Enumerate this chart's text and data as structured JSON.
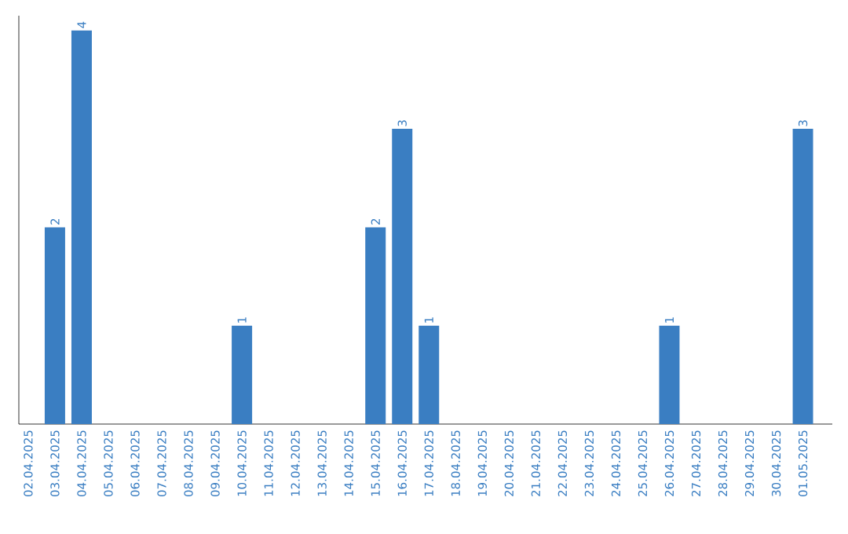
{
  "chart_data": {
    "type": "bar",
    "categories": [
      "02.04.2025",
      "03.04.2025",
      "04.04.2025",
      "05.04.2025",
      "06.04.2025",
      "07.04.2025",
      "08.04.2025",
      "09.04.2025",
      "10.04.2025",
      "11.04.2025",
      "12.04.2025",
      "13.04.2025",
      "14.04.2025",
      "15.04.2025",
      "16.04.2025",
      "17.04.2025",
      "18.04.2025",
      "19.04.2025",
      "20.04.2025",
      "21.04.2025",
      "22.04.2025",
      "23.04.2025",
      "24.04.2025",
      "25.04.2025",
      "26.04.2025",
      "27.04.2025",
      "28.04.2025",
      "29.04.2025",
      "30.04.2025",
      "01.05.2025"
    ],
    "values": [
      0,
      2,
      4,
      0,
      0,
      0,
      0,
      0,
      1,
      0,
      0,
      0,
      0,
      2,
      3,
      1,
      0,
      0,
      0,
      0,
      0,
      0,
      0,
      0,
      1,
      0,
      0,
      0,
      0,
      3
    ],
    "value_labels": [
      null,
      "2",
      "4",
      null,
      null,
      null,
      null,
      null,
      "1",
      null,
      null,
      null,
      null,
      "2",
      "3",
      "1",
      null,
      null,
      null,
      null,
      null,
      null,
      null,
      null,
      "1",
      null,
      null,
      null,
      null,
      "3"
    ],
    "color": "#3a7ec2",
    "ylim": [
      0,
      4.15
    ],
    "tick_labels": "x"
  }
}
